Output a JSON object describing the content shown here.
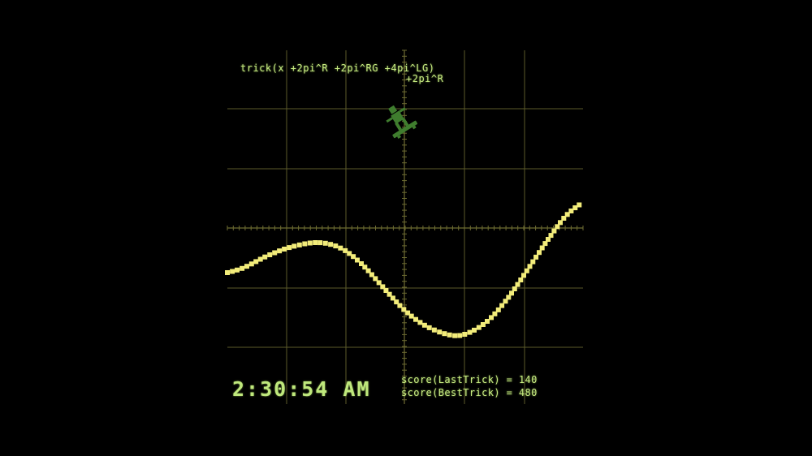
{
  "game": {
    "trick_formula": "trick(x +2pi^R +2pi^RG +4pi^LG)",
    "trick_formula_continued": "+2pi^R",
    "clock": "2:30:54 AM",
    "score_last_trick": "score(LastTrick) = 140",
    "score_best_trick": "score(BestTrick) = 480"
  },
  "colors": {
    "background": "#000000",
    "wave": "#f2ec7a",
    "grid": "#5c5a2a",
    "hud_text": "#c8ec82",
    "skater": "#3f7d2e"
  },
  "icons": {
    "player": "skateboarder-icon"
  }
}
